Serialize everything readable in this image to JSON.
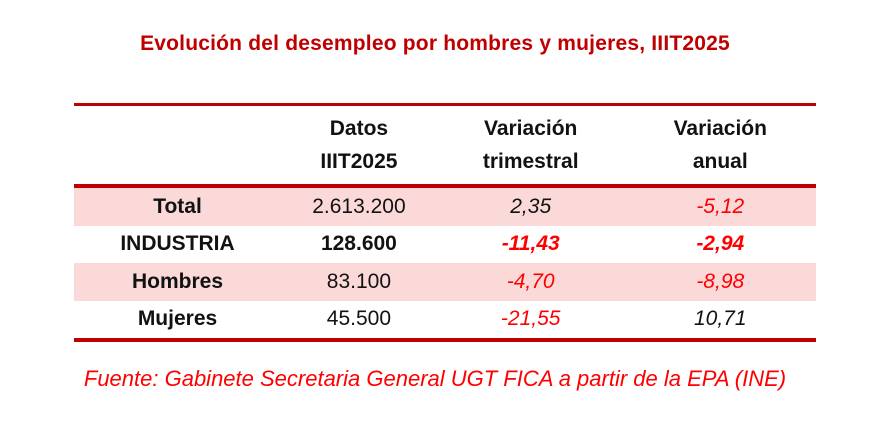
{
  "title": "Evolución del desempleo por hombres y mujeres, IIIT2025",
  "table": {
    "header": {
      "col_label": "",
      "datos": {
        "line1": "Datos",
        "line2": "IIIT2025"
      },
      "trimestral": {
        "line1": "Variación",
        "line2": "trimestral"
      },
      "anual": {
        "line1": "Variación",
        "line2": "anual"
      }
    },
    "rows": [
      {
        "label": "Total",
        "datos": "2.613.200",
        "var_trimestral": "2,35",
        "var_anual": "-5,12"
      },
      {
        "label": "INDUSTRIA",
        "datos": "128.600",
        "var_trimestral": "-11,43",
        "var_anual": "-2,94"
      },
      {
        "label": "Hombres",
        "datos": "83.100",
        "var_trimestral": "-4,70",
        "var_anual": "-8,98"
      },
      {
        "label": "Mujeres",
        "datos": "45.500",
        "var_trimestral": "-21,55",
        "var_anual": "10,71"
      }
    ]
  },
  "footer": "Fuente: Gabinete Secretaria General UGT FICA a partir de la EPA (INE)",
  "colors": {
    "title_red": "#C00000",
    "border_red": "#C00000",
    "value_red": "#FF0000",
    "row_pink": "#FBD9D9"
  },
  "chart_data": {
    "type": "table",
    "title": "Evolución del desempleo por hombres y mujeres, IIIT2025",
    "columns": [
      "",
      "Datos IIIT2025",
      "Variación trimestral",
      "Variación anual"
    ],
    "rows": [
      [
        "Total",
        2613200,
        2.35,
        -5.12
      ],
      [
        "INDUSTRIA",
        128600,
        -11.43,
        -2.94
      ],
      [
        "Hombres",
        83100,
        -4.7,
        -8.98
      ],
      [
        "Mujeres",
        45500,
        -21.55,
        10.71
      ]
    ],
    "notes": "Negative variation values rendered in red italics; INDUSTRIA row in bold; source note below table",
    "source": "Fuente: Gabinete Secretaria General UGT FICA a partir de la EPA (INE)"
  }
}
